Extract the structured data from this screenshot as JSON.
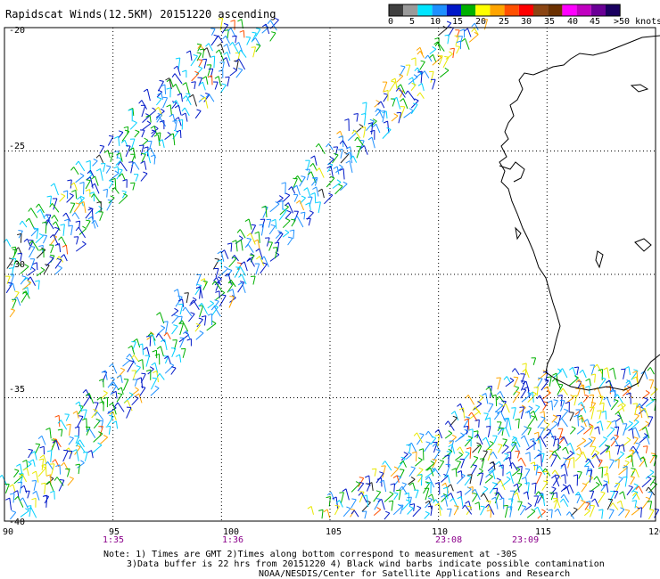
{
  "title": "Rapidscat Winds(12.5KM) 20151220 ascending",
  "legend": {
    "colors": [
      "#404040",
      "#9a9a9a",
      "#00e5ff",
      "#1e90ff",
      "#0018c8",
      "#00b000",
      "#ffff00",
      "#ffa500",
      "#ff5000",
      "#ff0000",
      "#8b4513",
      "#6b3000",
      "#ff00ff",
      "#c000c0",
      "#6a0096",
      "#1a0060"
    ],
    "labels": [
      "0",
      "5",
      "10",
      "15",
      "20",
      "25",
      "30",
      "35",
      "40",
      "45",
      ">50 knots"
    ]
  },
  "axes": {
    "x_labels": [
      "90",
      "95",
      "100",
      "105",
      "110",
      "115",
      "120"
    ],
    "y_labels": [
      "-20",
      "-25",
      "-30",
      "-35",
      "-40"
    ]
  },
  "pass_times": [
    "1:35",
    "1:36",
    "23:08",
    "23:09"
  ],
  "notes": {
    "line1": "Note: 1) Times are GMT 2)Times along bottom correspond to measurement at -30S",
    "line2": "3)Data buffer is 22 hrs from 20151220 4) Black wind barbs indicate possible contamination",
    "line3": "NOAA/NESDIS/Center for Satellite Applications and Research"
  },
  "map": {
    "lon_range": [
      90,
      120
    ],
    "lat_range": [
      -40,
      -20
    ],
    "region": "Indian Ocean west of Western Australia",
    "wind_speed_range_knots": [
      0,
      30
    ]
  },
  "colors": {
    "grid": "#000000",
    "coast": "#000000",
    "time_label": "#8b008b"
  }
}
